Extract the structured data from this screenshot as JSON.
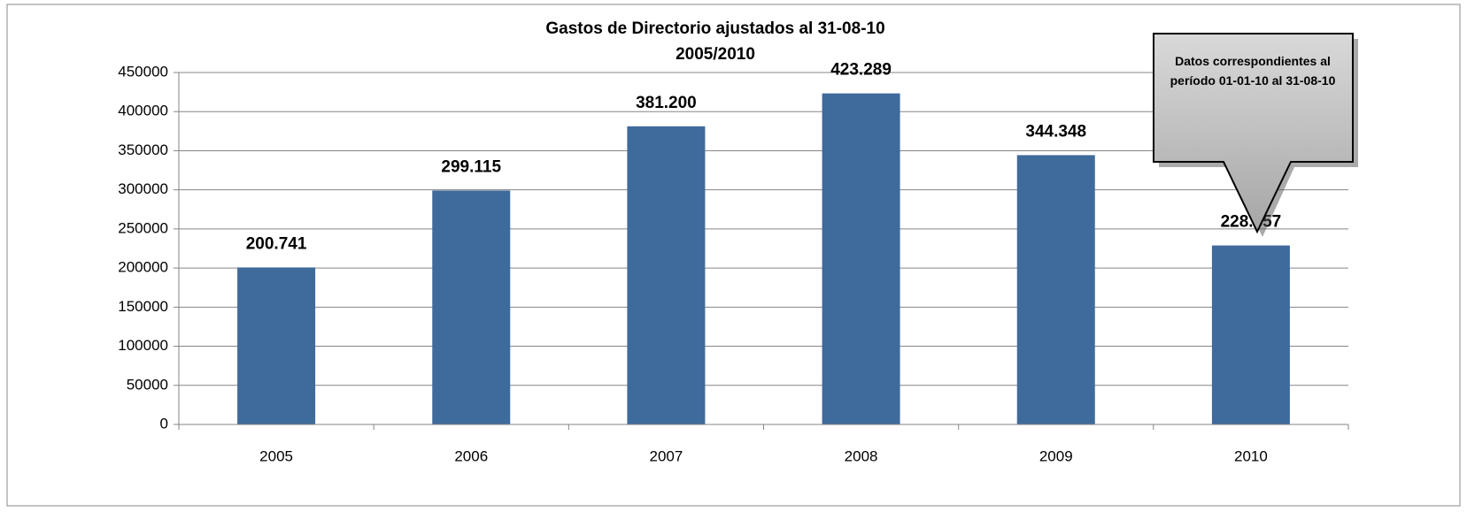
{
  "chart_data": {
    "type": "bar",
    "title": "Gastos de Directorio ajustados al 31-08-10",
    "subtitle": "2005/2010",
    "annotation": "Datos correspondientes al período 01-01-10 al 31-08-10",
    "categories": [
      "2005",
      "2006",
      "2007",
      "2008",
      "2009",
      "2010"
    ],
    "values": [
      200741,
      299115,
      381200,
      423289,
      344348,
      228857
    ],
    "value_labels": [
      "200.741",
      "299.115",
      "381.200",
      "423.289",
      "344.348",
      "228.857"
    ],
    "color": "#3f6a9c",
    "ylim": [
      0,
      450000
    ],
    "yticks": [
      0,
      50000,
      100000,
      150000,
      200000,
      250000,
      300000,
      350000,
      400000,
      450000
    ],
    "grid": true
  }
}
